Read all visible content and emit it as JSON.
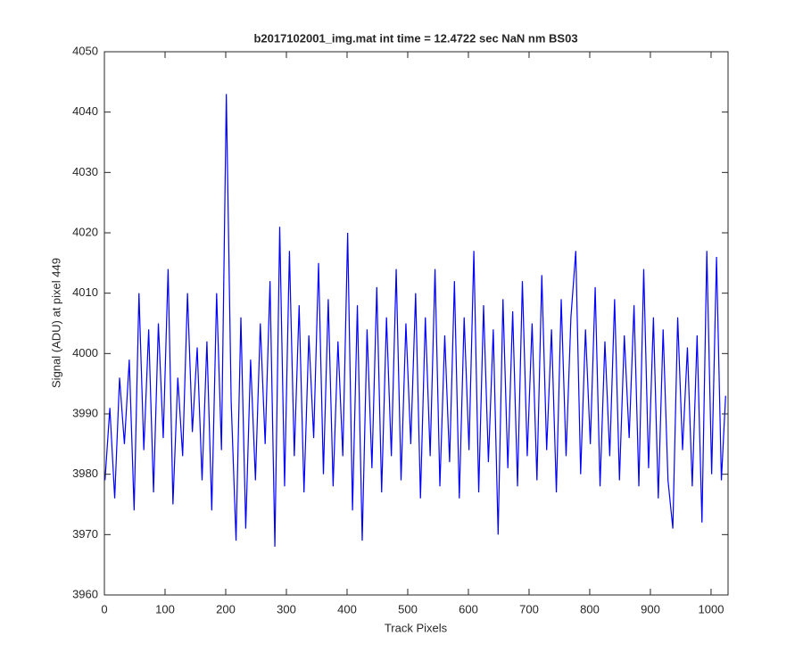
{
  "chart_data": {
    "type": "line",
    "title": "b2017102001_img.mat int time = 12.4722 sec  NaN nm BS03",
    "x_label": "Track Pixels",
    "y_label": "Signal (ADU) at pixel 449",
    "xlim": [
      0,
      1028
    ],
    "ylim": [
      3960,
      4050
    ],
    "xticks": [
      0,
      100,
      200,
      300,
      400,
      500,
      600,
      700,
      800,
      900,
      1000
    ],
    "yticks": [
      3960,
      3970,
      3980,
      3990,
      4000,
      4010,
      4020,
      4030,
      4040,
      4050
    ],
    "grid": false,
    "x": [
      1,
      9,
      17,
      25,
      33,
      41,
      49,
      57,
      65,
      73,
      81,
      89,
      97,
      105,
      113,
      121,
      129,
      137,
      145,
      153,
      161,
      169,
      177,
      185,
      193,
      201,
      209,
      217,
      225,
      233,
      241,
      249,
      257,
      265,
      273,
      281,
      289,
      297,
      305,
      313,
      321,
      329,
      337,
      345,
      353,
      361,
      369,
      377,
      385,
      393,
      401,
      409,
      417,
      425,
      433,
      441,
      449,
      457,
      465,
      473,
      481,
      489,
      497,
      505,
      513,
      521,
      529,
      537,
      545,
      553,
      561,
      569,
      577,
      585,
      593,
      601,
      609,
      617,
      625,
      633,
      641,
      649,
      657,
      665,
      673,
      681,
      689,
      697,
      705,
      713,
      721,
      729,
      737,
      745,
      753,
      761,
      769,
      777,
      785,
      793,
      801,
      809,
      817,
      825,
      833,
      841,
      849,
      857,
      865,
      873,
      881,
      889,
      897,
      905,
      913,
      921,
      929,
      937,
      945,
      953,
      961,
      969,
      977,
      985,
      993,
      1001,
      1009,
      1017,
      1024
    ],
    "series": [
      {
        "color": "#0000ff",
        "values": [
          3979,
          3991,
          3976,
          3996,
          3985,
          3999,
          3974,
          4010,
          3984,
          4004,
          3977,
          4005,
          3986,
          4014,
          3975,
          3996,
          3983,
          4010,
          3987,
          4001,
          3979,
          4002,
          3974,
          4010,
          3984,
          4043,
          3992,
          3969,
          4006,
          3971,
          3999,
          3979,
          4005,
          3985,
          4012,
          3968,
          4021,
          3978,
          4017,
          3983,
          4008,
          3977,
          4003,
          3986,
          4015,
          3980,
          4009,
          3978,
          4002,
          3983,
          4020,
          3974,
          4008,
          3969,
          4004,
          3981,
          4011,
          3977,
          4006,
          3983,
          4014,
          3979,
          4005,
          3985,
          4010,
          3976,
          4006,
          3983,
          4014,
          3978,
          4003,
          3982,
          4012,
          3976,
          4006,
          3984,
          4017,
          3977,
          4008,
          3982,
          4004,
          3970,
          4009,
          3981,
          4007,
          3978,
          4012,
          3983,
          4005,
          3979,
          4013,
          3984,
          4004,
          3977,
          4009,
          3983,
          4006,
          4017,
          3980,
          4004,
          3985,
          4011,
          3978,
          4002,
          3983,
          4009,
          3979,
          4003,
          3986,
          4008,
          3978,
          4014,
          3981,
          4006,
          3976,
          4004,
          3979,
          3971,
          4006,
          3984,
          4001,
          3978,
          4003,
          3972,
          4017,
          3980,
          4016,
          3979,
          3993
        ]
      }
    ]
  }
}
